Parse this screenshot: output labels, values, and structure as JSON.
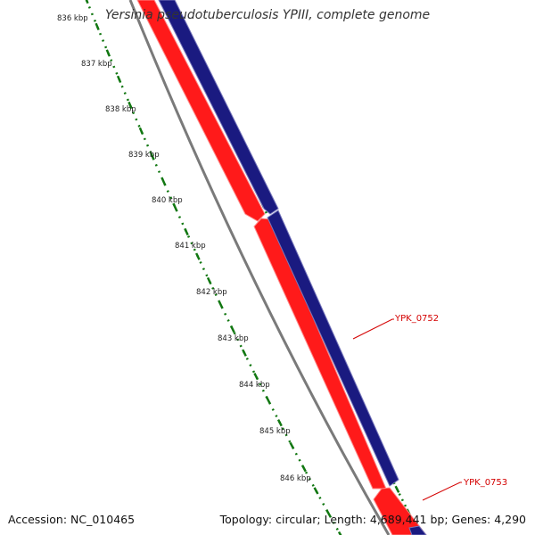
{
  "title": "Yersinia pseudotuberculosis YPIII, complete genome",
  "footer": {
    "accession": "Accession: NC_010465",
    "stats": "Topology: circular; Length: 4,689,441 bp; Genes: 4,290"
  },
  "ruler_labels": [
    "836 kbp",
    "837 kbp",
    "838 kbp",
    "839 kbp",
    "840 kbp",
    "841 kbp",
    "842 kbp",
    "843 kbp",
    "844 kbp",
    "845 kbp",
    "846 kbp"
  ],
  "gene_labels": [
    "YPK_0752",
    "YPK_0753"
  ],
  "colors": {
    "forward_strand": "#1a1a80",
    "reverse_strand": "#ff1a1a",
    "backbone": "#808080",
    "ticks": "#117711",
    "gene_label": "#d40000"
  }
}
